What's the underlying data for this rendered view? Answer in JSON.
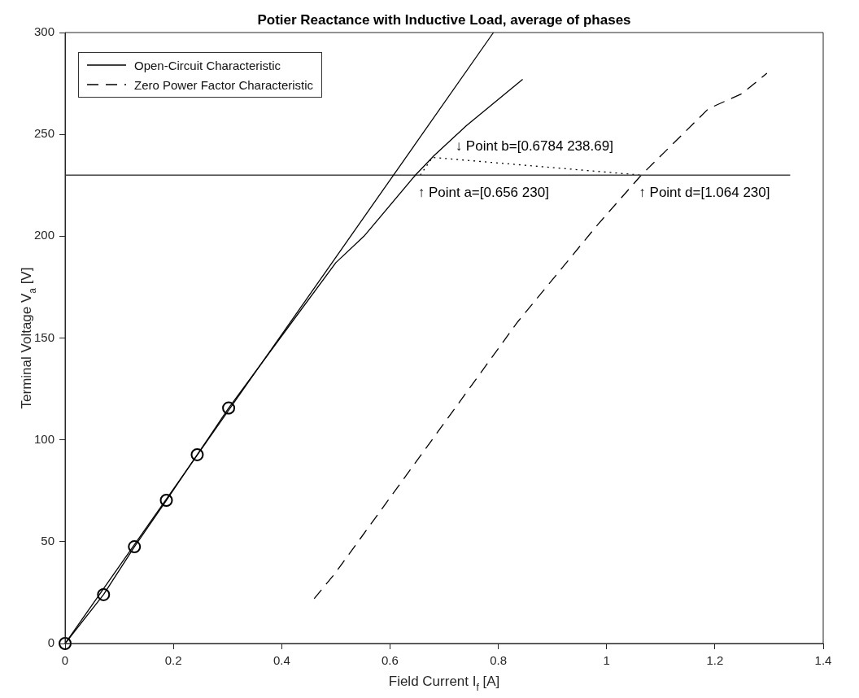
{
  "chart_data": {
    "type": "line",
    "title": "Potier Reactance with Inductive Load, average of phases",
    "xlabel": "Field Current I$_{f}$ [A]",
    "ylabel": "Terminal Voltage V$_{a}$ [V]",
    "xlim": [
      0,
      1.4
    ],
    "xticks": [
      0,
      0.2,
      0.4,
      0.6,
      0.8,
      1,
      1.2,
      1.4
    ],
    "ylim": [
      0,
      300
    ],
    "yticks": [
      0,
      50,
      100,
      150,
      200,
      250,
      300
    ],
    "grid": false,
    "legend": "top left",
    "marker": "none",
    "series": [
      {
        "name": "Open-Circuit Characteristic",
        "color": "#000000",
        "line_style": "solid",
        "x": [
          0,
          0.071,
          0.128,
          0.187,
          0.244,
          0.302,
          0.4,
          0.5,
          0.552,
          0.647,
          0.681,
          0.741,
          0.845
        ],
        "values": [
          0,
          24,
          47.5,
          70.3,
          92.7,
          115.6,
          151,
          187,
          200,
          230,
          239.5,
          254.3,
          277
        ]
      },
      {
        "type": "scatter",
        "color": "#000000",
        "marker": "circle",
        "x": [
          0,
          0.071,
          0.128,
          0.187,
          0.244,
          0.302
        ],
        "values": [
          0,
          24,
          47.5,
          70.3,
          92.7,
          115.6
        ]
      },
      {
        "color": "#000000",
        "line_style": "solid",
        "x": [
          0,
          0.791
        ],
        "values": [
          0,
          300
        ]
      },
      {
        "color": "#404040",
        "line_style": "solid",
        "x": [
          0,
          1.339
        ],
        "values": [
          230,
          230
        ]
      },
      {
        "color": "#000000",
        "line_style": "dotted",
        "x": [
          0.656,
          0.6784,
          1.064
        ],
        "values": [
          230,
          238.69,
          230
        ]
      },
      {
        "name": "Zero Power Factor Characteristic",
        "color": "#000000",
        "line_style": "dashed",
        "x": [
          0.46,
          0.499,
          0.836,
          0.983,
          1.064,
          1.188,
          1.25,
          1.296
        ],
        "values": [
          22,
          34.6,
          158,
          205.5,
          230,
          262.6,
          270,
          280
        ]
      }
    ],
    "annotations": [
      {
        "text": "↑ Point a=[0.656 230]",
        "x": 0.656,
        "y": 230
      },
      {
        "text": "↓ Point b=[0.6784 238.69]",
        "x": 0.6784,
        "y": 238.69
      },
      {
        "text": "↑ Point d=[1.064 230]",
        "x": 1.064,
        "y": 230
      }
    ]
  }
}
